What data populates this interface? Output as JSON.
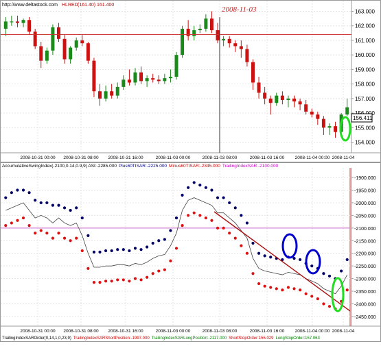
{
  "header": {
    "site": "http://www.deltastock.com",
    "price_label": "HLRED",
    "price_values": "(161.40) 161.400",
    "date_annotation": "2008-11-03"
  },
  "top_panel": {
    "current_price_label": "156.411",
    "y_ticks": [
      "163.000",
      "162.000",
      "161.000",
      "160.000",
      "159.000",
      "158.000",
      "157.000",
      "156.000",
      "155.000",
      "154.000"
    ],
    "x_ticks": [
      "2008-10-31 00:00",
      "2008-10-31 08:00",
      "2008-10-31 16:00",
      "2008-11-03 00:00",
      "2008-11-03 08:00",
      "2008-11-03 16:00",
      "2008-11-04 00:00",
      "2008-11-04"
    ],
    "red_line_level": 161.4
  },
  "bottom_panel": {
    "legend": [
      {
        "text": "AccumulativeSwingIndex(-2100,0.14,0.9,9) ASI:-2285.000",
        "color": "#000000"
      },
      {
        "text": "Plus60TISAR:-2225.000",
        "color": "#000080"
      },
      {
        "text": "Minus60TISAR:-2345.000",
        "color": "#cc0000"
      },
      {
        "text": "TrailingIndexSAR:-2100.000",
        "color": "#cc00cc"
      }
    ],
    "footer": [
      {
        "text": "TrailingIndexSAROrder(0,14,1,0,23,9)",
        "color": "#000000"
      },
      {
        "text": "TrailingIndexSARShortPosition:-1997.000",
        "color": "#cc0000"
      },
      {
        "text": "TrailingIndexSARLongPosition:-2117.000",
        "color": "#008000"
      },
      {
        "text": "ShortStopOrder:155.029",
        "color": "#cc0000"
      },
      {
        "text": "LongStopOrder:157.063",
        "color": "#008000"
      }
    ],
    "y_ticks": [
      "-1900.000",
      "-1950.000",
      "-2000.000",
      "-2050.000",
      "-2100.000",
      "-2150.000",
      "-2200.000",
      "-2250.000",
      "-2300.000",
      "-2350.000",
      "-2400.000",
      "-2450.000"
    ],
    "x_ticks": [
      "2008-10-31 00:00",
      "2008-10-31 08:00",
      "2008-10-31 16:00",
      "2008-11-03 00:00",
      "2008-11-03 08:00",
      "2008-11-03 16:00",
      "2008-11-04 00:00",
      "2008-11-04"
    ]
  },
  "colors": {
    "bull": "#1a8a1a",
    "bear": "#cc1111",
    "blue_dots": "#000066",
    "red_dots": "#dd1111",
    "magenta": "#cc66cc",
    "ellipse_blue": "#0000cc",
    "ellipse_green": "#22dd22",
    "trendline": "#aa1111"
  },
  "chart_data": [
    {
      "type": "candlestick",
      "title": "HLRED",
      "ylim": [
        153.6,
        163.4
      ],
      "candles": [
        [
          161.8,
          162.6,
          161.3,
          162.3
        ],
        [
          162.3,
          162.7,
          162.0,
          162.3
        ],
        [
          162.3,
          162.7,
          161.9,
          162.2
        ],
        [
          162.2,
          162.5,
          161.9,
          162.4
        ],
        [
          162.4,
          162.6,
          161.4,
          161.6
        ],
        [
          161.6,
          161.8,
          160.4,
          160.6
        ],
        [
          160.6,
          160.9,
          159.1,
          159.6
        ],
        [
          159.6,
          160.5,
          159.4,
          160.3
        ],
        [
          160.3,
          162.1,
          160.0,
          161.9
        ],
        [
          161.9,
          162.2,
          160.9,
          161.1
        ],
        [
          161.1,
          161.4,
          159.4,
          159.7
        ],
        [
          159.7,
          160.6,
          159.4,
          160.5
        ],
        [
          160.5,
          161.2,
          160.3,
          161.0
        ],
        [
          161.0,
          161.4,
          160.6,
          160.8
        ],
        [
          160.8,
          160.9,
          159.4,
          159.6
        ],
        [
          159.6,
          159.8,
          157.1,
          157.5
        ],
        [
          157.5,
          158.0,
          156.5,
          157.0
        ],
        [
          157.0,
          157.9,
          156.8,
          157.5
        ],
        [
          157.5,
          158.0,
          157.0,
          157.2
        ],
        [
          157.2,
          158.1,
          157.0,
          157.8
        ],
        [
          157.8,
          158.6,
          157.6,
          158.3
        ],
        [
          158.3,
          159.0,
          157.9,
          158.1
        ],
        [
          158.1,
          159.1,
          157.9,
          158.8
        ],
        [
          158.8,
          159.2,
          158.0,
          158.2
        ],
        [
          158.2,
          158.6,
          157.8,
          158.4
        ],
        [
          158.4,
          158.7,
          158.1,
          158.3
        ],
        [
          158.3,
          158.6,
          158.0,
          158.2
        ],
        [
          158.2,
          158.7,
          158.0,
          158.4
        ],
        [
          158.4,
          159.0,
          158.1,
          158.5
        ],
        [
          158.5,
          160.2,
          158.3,
          160.0
        ],
        [
          160.0,
          162.0,
          159.8,
          161.8
        ],
        [
          161.8,
          162.4,
          161.0,
          161.3
        ],
        [
          161.3,
          162.0,
          161.0,
          161.7
        ],
        [
          161.7,
          162.1,
          161.5,
          161.8
        ],
        [
          161.8,
          162.8,
          161.6,
          162.5
        ],
        [
          162.5,
          163.0,
          161.5,
          161.7
        ],
        [
          161.7,
          162.2,
          160.8,
          161.0
        ],
        [
          161.0,
          161.3,
          160.6,
          161.1
        ],
        [
          161.1,
          161.3,
          160.5,
          160.8
        ],
        [
          160.8,
          161.0,
          160.2,
          160.6
        ],
        [
          160.6,
          161.0,
          159.8,
          160.4
        ],
        [
          160.4,
          160.7,
          159.2,
          159.5
        ],
        [
          159.5,
          159.7,
          157.6,
          158.1
        ],
        [
          158.1,
          158.5,
          157.0,
          157.4
        ],
        [
          157.4,
          157.8,
          156.6,
          157.0
        ],
        [
          157.0,
          157.2,
          155.9,
          156.7
        ],
        [
          156.7,
          157.4,
          156.5,
          157.2
        ],
        [
          157.2,
          157.5,
          156.6,
          156.9
        ],
        [
          156.9,
          157.2,
          156.4,
          157.0
        ],
        [
          157.0,
          157.2,
          156.4,
          156.8
        ],
        [
          156.8,
          157.0,
          156.2,
          156.6
        ],
        [
          156.6,
          156.9,
          155.9,
          156.1
        ],
        [
          156.1,
          156.3,
          155.7,
          155.9
        ],
        [
          155.9,
          156.1,
          155.2,
          155.6
        ],
        [
          155.6,
          155.8,
          154.5,
          155.0
        ],
        [
          155.0,
          155.3,
          154.5,
          155.1
        ],
        [
          155.1,
          155.4,
          154.3,
          154.7
        ],
        [
          154.7,
          156.0,
          154.6,
          155.9
        ],
        [
          155.9,
          157.0,
          155.8,
          156.4
        ]
      ],
      "y_ticks": [
        163,
        162,
        161,
        160,
        159,
        158,
        157,
        156,
        155,
        154
      ]
    },
    {
      "type": "scatter",
      "title": "AccumulativeSwingIndex(-2100,0.14,0.9,9) ASI:-2285.000",
      "ylim": [
        -2480,
        -1870
      ],
      "series": [
        {
          "name": "AccumulativeSwingIndex",
          "kind": "line",
          "values": [
            -2030,
            -2020,
            -2010,
            -2000,
            -2030,
            -2060,
            -2050,
            -2060,
            -2080,
            -2060,
            -2080,
            -2090,
            -2080,
            -2130,
            -2200,
            -2255,
            -2255,
            -2250,
            -2250,
            -2245,
            -2245,
            -2250,
            -2240,
            -2245,
            -2235,
            -2220,
            -2210,
            -2205,
            -2170,
            -2120,
            -2030,
            -1990,
            -1980,
            -1990,
            -2000,
            -2010,
            -2040,
            -2040,
            -2060,
            -2080,
            -2110,
            -2140,
            -2220,
            -2260,
            -2270,
            -2275,
            -2280,
            -2285,
            -2275,
            -2280,
            -2285,
            -2300,
            -2310,
            -2320,
            -2340,
            -2350,
            -2360,
            -2330,
            -2285
          ]
        },
        {
          "name": "Plus60TISAR",
          "kind": "dots",
          "values": [
            -1980,
            -1960,
            -1950,
            -1950,
            -1960,
            -1990,
            -2000,
            -2000,
            -2010,
            -2010,
            -2020,
            -2030,
            -2020,
            -2060,
            -2130,
            -2195,
            -2195,
            -2190,
            -2190,
            -2185,
            -2185,
            -2190,
            -2180,
            -2185,
            -2175,
            -2160,
            -2150,
            -2145,
            -2110,
            -2060,
            -1970,
            -1940,
            -1920,
            -1930,
            -1940,
            -1950,
            -1980,
            -1980,
            -2000,
            -2020,
            -2050,
            -2080,
            -2160,
            -2200,
            -2210,
            -2215,
            -2220,
            -2225,
            -2215,
            -2220,
            -2225,
            -2240,
            -2250,
            -2260,
            -2280,
            -2290,
            -2300,
            -2270,
            -2225
          ]
        },
        {
          "name": "Minus60TISAR",
          "kind": "dots",
          "values": [
            -2090,
            -2080,
            -2070,
            -2060,
            -2090,
            -2120,
            -2110,
            -2120,
            -2140,
            -2120,
            -2140,
            -2150,
            -2140,
            -2190,
            -2260,
            -2315,
            -2315,
            -2310,
            -2310,
            -2305,
            -2305,
            -2310,
            -2300,
            -2305,
            -2295,
            -2280,
            -2270,
            -2265,
            -2230,
            -2180,
            -2090,
            -2050,
            -2040,
            -2050,
            -2060,
            -2070,
            -2100,
            -2100,
            -2120,
            -2140,
            -2170,
            -2200,
            -2280,
            -2320,
            -2330,
            -2335,
            -2340,
            -2345,
            -2335,
            -2340,
            -2345,
            -2360,
            -2370,
            -2380,
            -2400,
            -2410,
            -2420,
            -2390,
            -2345
          ]
        },
        {
          "name": "TrailingIndexSAR",
          "kind": "hline",
          "value": -2100
        }
      ],
      "y_ticks": [
        -1900,
        -1950,
        -2000,
        -2050,
        -2100,
        -2150,
        -2200,
        -2250,
        -2300,
        -2350,
        -2400,
        -2450
      ]
    }
  ]
}
